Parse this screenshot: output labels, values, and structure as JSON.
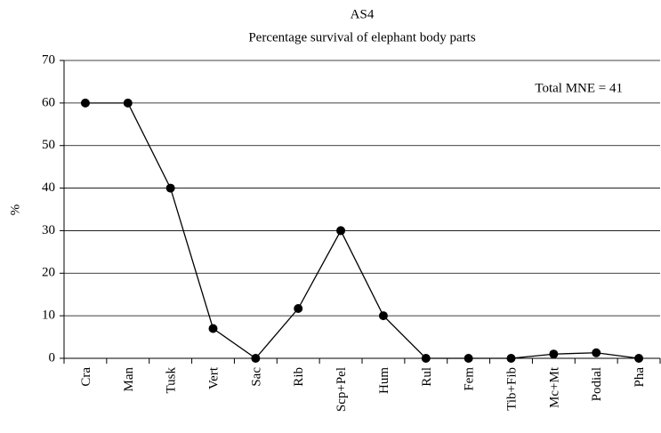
{
  "chart_data": {
    "type": "line",
    "title": "AS4",
    "subtitle": "Percentage survival of elephant body parts",
    "y_label": "%",
    "annotation": "Total MNE = 41",
    "categories": [
      "Cra",
      "Man",
      "Tusk",
      "Vert",
      "Sac",
      "Rib",
      "Scp+Pel",
      "Hum",
      "Rul",
      "Fem",
      "Tib+Fib",
      "Mc+Mt",
      "Podial",
      "Pha"
    ],
    "values": [
      60,
      60,
      40,
      7,
      0,
      11.7,
      30,
      10,
      0,
      0,
      0,
      1,
      1.3,
      0
    ],
    "color": "#000000",
    "ylim": [
      0,
      70
    ],
    "yticks": [
      0,
      10,
      20,
      30,
      40,
      50,
      60,
      70
    ],
    "grid": true
  }
}
